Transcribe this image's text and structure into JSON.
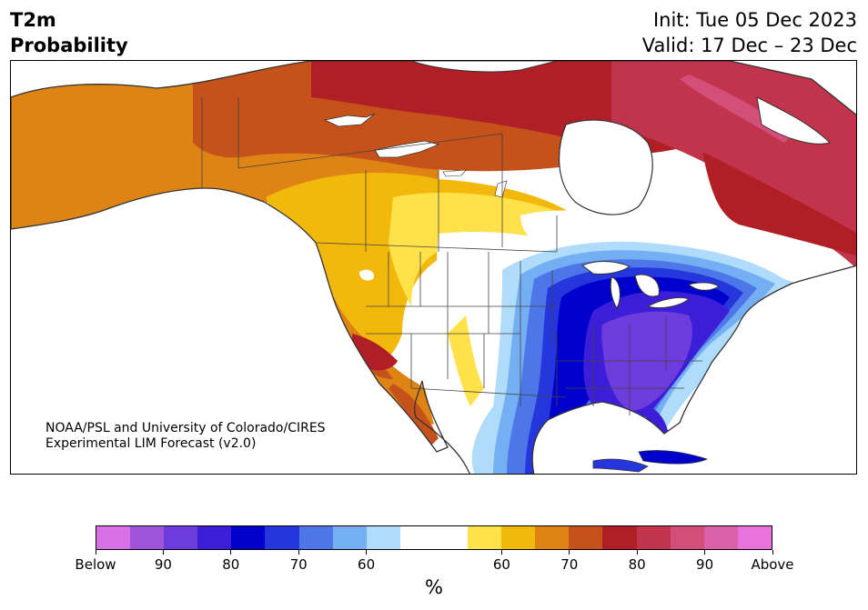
{
  "title": {
    "line1": "T2m",
    "line2": "Probability"
  },
  "init": "Init: Tue 05 Dec 2023",
  "valid": "Valid: 17 Dec – 23 Dec",
  "credit": {
    "line1": "NOAA/PSL and University of Colorado/CIRES",
    "line2": "Experimental LIM Forecast (v2.0)"
  },
  "colorbar": {
    "colors": [
      "#da70e6",
      "#9f55db",
      "#6e3bdc",
      "#3d1ed8",
      "#0000cd",
      "#2436dc",
      "#4d77e8",
      "#73aff2",
      "#b0dcfb",
      "#ffffff",
      "#ffffff",
      "#ffe24a",
      "#f2b80c",
      "#dd8415",
      "#c4521a",
      "#b01f26",
      "#c2344b",
      "#d34e79",
      "#db60aa",
      "#e973db"
    ],
    "tick_labels": [
      "Below",
      "90",
      "80",
      "70",
      "60",
      "60",
      "70",
      "80",
      "90",
      "Above"
    ],
    "units": "%"
  },
  "map": {
    "region": "North America",
    "colors": {
      "land_outline": "#333333",
      "lakes": "#ffffff"
    }
  }
}
